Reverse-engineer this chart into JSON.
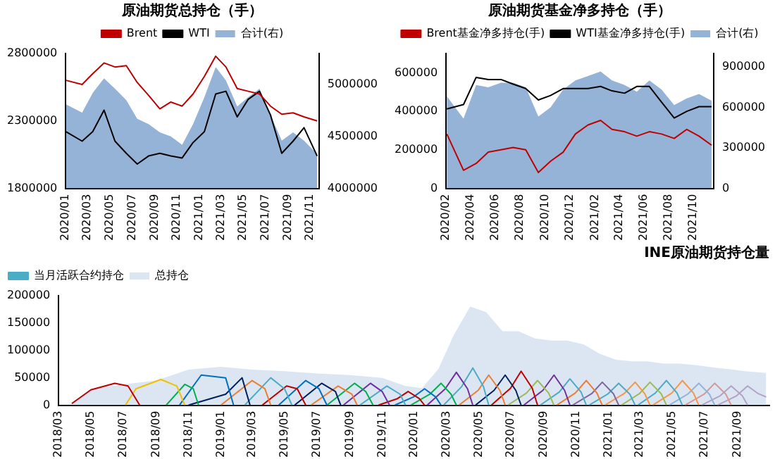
{
  "chart_data": [
    {
      "type": "line",
      "title": "原油期货总持仓（手）",
      "legend": "top",
      "marker": "none",
      "xlim": [
        "2020-01-01",
        "2021-11-25"
      ],
      "xticks": [
        {
          "value": "2020-01",
          "label": "2020/01"
        },
        {
          "value": "2020-03",
          "label": "2020/03"
        },
        {
          "value": "2020-05",
          "label": "2020/05"
        },
        {
          "value": "2020-07",
          "label": "2020/07"
        },
        {
          "value": "2020-09",
          "label": "2020/09"
        },
        {
          "value": "2020-11",
          "label": "2020/11"
        },
        {
          "value": "2021-01",
          "label": "2021/01"
        },
        {
          "value": "2021-03",
          "label": "2021/03"
        },
        {
          "value": "2021-05",
          "label": "2021/05"
        },
        {
          "value": "2021-07",
          "label": "2021/07"
        },
        {
          "value": "2021-09",
          "label": "2021/09"
        },
        {
          "value": "2021-11",
          "label": "2021/11"
        }
      ],
      "ylim": [
        1800000,
        2800000
      ],
      "yticks": [
        1800000,
        2300000,
        2800000
      ],
      "y2lim": [
        4000000,
        5300000
      ],
      "y2ticks": [
        4000000,
        4500000,
        5000000
      ],
      "x": [
        "2020-01-02",
        "2020-02-15",
        "2020-03-15",
        "2020-04-15",
        "2020-05-15",
        "2020-06-15",
        "2020-07-15",
        "2020-08-15",
        "2020-09-15",
        "2020-10-15",
        "2020-11-15",
        "2020-12-15",
        "2021-01-15",
        "2021-02-15",
        "2021-03-15",
        "2021-04-15",
        "2021-05-15",
        "2021-06-15",
        "2021-07-15",
        "2021-08-15",
        "2021-09-15",
        "2021-10-15",
        "2021-11-20"
      ],
      "series": [
        {
          "name": "合计(右)",
          "type": "area",
          "axis": "y2",
          "color": "#95b3d7",
          "values": [
            4810000,
            4730000,
            4920000,
            5060000,
            4960000,
            4850000,
            4670000,
            4620000,
            4540000,
            4500000,
            4420000,
            4620000,
            4880000,
            5170000,
            5040000,
            4790000,
            4880000,
            4960000,
            4710000,
            4460000,
            4540000,
            4460000,
            4330000
          ]
        },
        {
          "name": "Brent",
          "color": "#c00000",
          "values": [
            2601000,
            2570000,
            2650000,
            2730000,
            2700000,
            2710000,
            2585000,
            2490000,
            2390000,
            2440000,
            2410000,
            2500000,
            2630000,
            2780000,
            2700000,
            2540000,
            2520000,
            2500000,
            2410000,
            2350000,
            2360000,
            2330000,
            2300000
          ]
        },
        {
          "name": "WTI",
          "color": "#000000",
          "values": [
            2220000,
            2150000,
            2220000,
            2380000,
            2150000,
            2060000,
            1980000,
            2040000,
            2060000,
            2040000,
            2025000,
            2140000,
            2220000,
            2500000,
            2520000,
            2330000,
            2460000,
            2520000,
            2345000,
            2060000,
            2150000,
            2250000,
            2040000
          ]
        }
      ]
    },
    {
      "type": "line",
      "title": "原油期货基金净多持仓（手）",
      "legend": "top",
      "marker": "none",
      "xlim": [
        "2020-02-01",
        "2021-11-20"
      ],
      "xticks": [
        {
          "value": "2020-02",
          "label": "2020/02"
        },
        {
          "value": "2020-04",
          "label": "2020/04"
        },
        {
          "value": "2020-06",
          "label": "2020/06"
        },
        {
          "value": "2020-08",
          "label": "2020/08"
        },
        {
          "value": "2020-10",
          "label": "2020/10"
        },
        {
          "value": "2020-12",
          "label": "2020/12"
        },
        {
          "value": "2021-02",
          "label": "2021/02"
        },
        {
          "value": "2021-04",
          "label": "2021/04"
        },
        {
          "value": "2021-06",
          "label": "2021/06"
        },
        {
          "value": "2021-08",
          "label": "2021/08"
        },
        {
          "value": "2021-10",
          "label": "2021/10"
        }
      ],
      "ylim": [
        0,
        700000
      ],
      "yticks": [
        0,
        200000,
        400000,
        600000
      ],
      "y2lim": [
        0,
        1000000
      ],
      "y2ticks": [
        0,
        300000,
        600000,
        900000
      ],
      "x": [
        "2020-02-03",
        "2020-03-15",
        "2020-04-15",
        "2020-05-15",
        "2020-06-15",
        "2020-07-15",
        "2020-08-15",
        "2020-09-15",
        "2020-10-15",
        "2020-11-15",
        "2020-12-15",
        "2021-01-15",
        "2021-02-15",
        "2021-03-15",
        "2021-04-15",
        "2021-05-15",
        "2021-06-15",
        "2021-07-15",
        "2021-08-15",
        "2021-09-15",
        "2021-10-15",
        "2021-11-15"
      ],
      "series": [
        {
          "name": "合计(右)",
          "type": "area",
          "axis": "y2",
          "color": "#95b3d7",
          "values": [
            683000,
            517000,
            767000,
            750000,
            783000,
            783000,
            750000,
            533000,
            600000,
            733000,
            800000,
            833000,
            867000,
            800000,
            767000,
            717000,
            800000,
            733000,
            617000,
            667000,
            700000,
            650000
          ]
        },
        {
          "name": "Brent基金净多持仓(手)",
          "color": "#c00000",
          "values": [
            282000,
            94000,
            129000,
            188000,
            200000,
            212000,
            200000,
            82000,
            141000,
            188000,
            282000,
            329000,
            353000,
            306000,
            294000,
            271000,
            294000,
            282000,
            259000,
            306000,
            271000,
            224000
          ]
        },
        {
          "name": "WTI基金净多持仓(手)",
          "color": "#000000",
          "values": [
            412000,
            435000,
            576000,
            565000,
            565000,
            541000,
            518000,
            459000,
            482000,
            518000,
            518000,
            518000,
            529000,
            506000,
            494000,
            529000,
            529000,
            447000,
            365000,
            400000,
            424000,
            424000
          ]
        }
      ]
    },
    {
      "type": "line",
      "title": "INE原油期货持仓量",
      "legend": "top left",
      "marker": "none",
      "xlim": [
        "2018-03-01",
        "2021-10-31"
      ],
      "xticks": [
        {
          "value": "2018-03",
          "label": "2018/03"
        },
        {
          "value": "2018-05",
          "label": "2018/05"
        },
        {
          "value": "2018-07",
          "label": "2018/07"
        },
        {
          "value": "2018-09",
          "label": "2018/09"
        },
        {
          "value": "2018-11",
          "label": "2018/11"
        },
        {
          "value": "2019-01",
          "label": "2019/01"
        },
        {
          "value": "2019-03",
          "label": "2019/03"
        },
        {
          "value": "2019-05",
          "label": "2019/05"
        },
        {
          "value": "2019-07",
          "label": "2019/07"
        },
        {
          "value": "2019-09",
          "label": "2019/09"
        },
        {
          "value": "2019-11",
          "label": "2019/11"
        },
        {
          "value": "2020-01",
          "label": "2020/01"
        },
        {
          "value": "2020-03",
          "label": "2020/03"
        },
        {
          "value": "2020-05",
          "label": "2020/05"
        },
        {
          "value": "2020-07",
          "label": "2020/07"
        },
        {
          "value": "2020-09",
          "label": "2020/09"
        },
        {
          "value": "2020-11",
          "label": "2020/11"
        },
        {
          "value": "2021-01",
          "label": "2021/01"
        },
        {
          "value": "2021-03",
          "label": "2021/03"
        },
        {
          "value": "2021-05",
          "label": "2021/05"
        },
        {
          "value": "2021-07",
          "label": "2021/07"
        },
        {
          "value": "2021-09",
          "label": "2021/09"
        }
      ],
      "ylim": [
        0,
        200000
      ],
      "yticks": [
        0,
        50000,
        100000,
        150000,
        200000
      ],
      "series": [
        {
          "name": "总持仓",
          "type": "area",
          "color": "#dce6f2",
          "x": [
            "2018-03-26",
            "2018-05-01",
            "2018-07-01",
            "2018-09-01",
            "2018-11-01",
            "2019-01-01",
            "2019-03-01",
            "2019-05-01",
            "2019-07-01",
            "2019-09-01",
            "2019-11-01",
            "2019-12-15",
            "2020-01-15",
            "2020-02-15",
            "2020-03-15",
            "2020-04-15",
            "2020-05-15",
            "2020-06-15",
            "2020-07-15",
            "2020-08-15",
            "2020-09-15",
            "2020-10-15",
            "2020-11-15",
            "2020-12-15",
            "2021-01-15",
            "2021-02-15",
            "2021-03-15",
            "2021-04-15",
            "2021-05-15",
            "2021-06-15",
            "2021-07-15",
            "2021-08-15",
            "2021-09-15",
            "2021-10-25"
          ],
          "values": [
            5000,
            30000,
            38000,
            45000,
            65000,
            70000,
            65000,
            62000,
            58000,
            55000,
            50000,
            35000,
            31000,
            66000,
            128000,
            180000,
            170000,
            135000,
            135000,
            122000,
            118000,
            118000,
            111000,
            94000,
            83000,
            80000,
            80000,
            76000,
            76000,
            73000,
            69000,
            66000,
            62000,
            59000
          ]
        },
        {
          "color": "#c00000",
          "x": [
            "2018-03-26",
            "2018-05-01",
            "2018-06-15",
            "2018-07-10",
            "2018-08-01"
          ],
          "values": [
            3000,
            28000,
            40000,
            35000,
            0
          ]
        },
        {
          "color": "#f0c000",
          "x": [
            "2018-07-05",
            "2018-07-25",
            "2018-09-10",
            "2018-10-10",
            "2018-10-25"
          ],
          "values": [
            0,
            30000,
            47000,
            35000,
            0
          ]
        },
        {
          "color": "#00b050",
          "x": [
            "2018-09-20",
            "2018-10-25",
            "2018-11-10",
            "2018-11-20"
          ],
          "values": [
            0,
            38000,
            30000,
            0
          ]
        },
        {
          "color": "#0070c0",
          "x": [
            "2018-10-15",
            "2018-11-25",
            "2019-01-10",
            "2019-01-25"
          ],
          "values": [
            0,
            55000,
            50000,
            0
          ]
        },
        {
          "color": "#002060",
          "x": [
            "2018-11-01",
            "2019-01-10",
            "2019-02-10",
            "2019-02-25"
          ],
          "values": [
            0,
            20000,
            50000,
            0
          ]
        },
        {
          "color": "#ed7d31",
          "x": [
            "2019-01-01",
            "2019-03-01",
            "2019-03-25",
            "2019-04-05"
          ],
          "values": [
            0,
            45000,
            30000,
            0
          ]
        },
        {
          "name": "当月活跃合约持仓",
          "color": "#4bacc6",
          "x": [
            "2019-02-15",
            "2019-04-05",
            "2019-05-01",
            "2019-05-15"
          ],
          "values": [
            0,
            50000,
            30000,
            0
          ]
        },
        {
          "color": "#c00000",
          "x": [
            "2019-03-20",
            "2019-05-05",
            "2019-05-25",
            "2019-06-10"
          ],
          "values": [
            0,
            35000,
            30000,
            0
          ]
        },
        {
          "color": "#0070c0",
          "x": [
            "2019-04-20",
            "2019-06-10",
            "2019-07-05",
            "2019-07-20"
          ],
          "values": [
            0,
            45000,
            30000,
            0
          ]
        },
        {
          "color": "#002060",
          "x": [
            "2019-05-20",
            "2019-07-10",
            "2019-08-05",
            "2019-08-15"
          ],
          "values": [
            0,
            40000,
            25000,
            0
          ]
        },
        {
          "color": "#ed7d31",
          "x": [
            "2019-06-20",
            "2019-08-10",
            "2019-09-05",
            "2019-09-15"
          ],
          "values": [
            0,
            35000,
            20000,
            0
          ]
        },
        {
          "color": "#00b050",
          "x": [
            "2019-07-20",
            "2019-09-10",
            "2019-10-01",
            "2019-10-15"
          ],
          "values": [
            0,
            40000,
            25000,
            0
          ]
        },
        {
          "color": "#7030a0",
          "x": [
            "2019-08-20",
            "2019-10-10",
            "2019-11-01",
            "2019-11-15"
          ],
          "values": [
            0,
            40000,
            25000,
            0
          ]
        },
        {
          "color": "#4bacc6",
          "x": [
            "2019-09-20",
            "2019-11-10",
            "2019-12-05",
            "2019-12-15"
          ],
          "values": [
            0,
            35000,
            20000,
            0
          ]
        },
        {
          "color": "#c00000",
          "x": [
            "2019-10-25",
            "2019-11-30",
            "2019-12-20",
            "2020-01-10",
            "2020-01-20"
          ],
          "values": [
            0,
            12000,
            25000,
            12000,
            0
          ]
        },
        {
          "color": "#0070c0",
          "x": [
            "2019-11-25",
            "2019-12-30",
            "2020-01-20",
            "2020-02-10",
            "2020-02-20"
          ],
          "values": [
            0,
            15000,
            30000,
            15000,
            0
          ]
        },
        {
          "color": "#00b050",
          "x": [
            "2019-12-25",
            "2020-01-30",
            "2020-02-20",
            "2020-03-10",
            "2020-03-20"
          ],
          "values": [
            0,
            20000,
            40000,
            20000,
            0
          ]
        },
        {
          "color": "#7030a0",
          "x": [
            "2020-01-25",
            "2020-02-28",
            "2020-03-20",
            "2020-04-10",
            "2020-04-20"
          ],
          "values": [
            0,
            30000,
            60000,
            30000,
            0
          ]
        },
        {
          "color": "#4bacc6",
          "x": [
            "2020-02-25",
            "2020-03-30",
            "2020-04-20",
            "2020-05-10",
            "2020-05-20"
          ],
          "values": [
            0,
            34000,
            68000,
            34000,
            0
          ]
        },
        {
          "color": "#ed7d31",
          "x": [
            "2020-03-25",
            "2020-04-30",
            "2020-05-20",
            "2020-06-10",
            "2020-06-20"
          ],
          "values": [
            0,
            27000,
            55000,
            27000,
            0
          ]
        },
        {
          "color": "#002060",
          "x": [
            "2020-04-25",
            "2020-05-30",
            "2020-06-20",
            "2020-07-10",
            "2020-07-20"
          ],
          "values": [
            0,
            27000,
            55000,
            27000,
            0
          ]
        },
        {
          "color": "#c00000",
          "x": [
            "2020-05-25",
            "2020-06-30",
            "2020-07-20",
            "2020-08-10",
            "2020-08-20"
          ],
          "values": [
            0,
            31000,
            62000,
            31000,
            0
          ]
        },
        {
          "color": "#9bbb59",
          "x": [
            "2020-06-25",
            "2020-07-30",
            "2020-08-20",
            "2020-09-10",
            "2020-09-20"
          ],
          "values": [
            0,
            22000,
            45000,
            22000,
            0
          ]
        },
        {
          "color": "#7030a0",
          "x": [
            "2020-07-25",
            "2020-08-30",
            "2020-09-20",
            "2020-10-10",
            "2020-10-20"
          ],
          "values": [
            0,
            27000,
            55000,
            27000,
            0
          ]
        },
        {
          "color": "#4bacc6",
          "x": [
            "2020-08-25",
            "2020-09-30",
            "2020-10-20",
            "2020-11-10",
            "2020-11-20"
          ],
          "values": [
            0,
            24000,
            48000,
            24000,
            0
          ]
        },
        {
          "color": "#ed7d31",
          "x": [
            "2020-09-25",
            "2020-10-30",
            "2020-11-20",
            "2020-12-10",
            "2020-12-20"
          ],
          "values": [
            0,
            22000,
            45000,
            22000,
            0
          ]
        },
        {
          "color": "#8064a2",
          "x": [
            "2020-10-25",
            "2020-11-30",
            "2020-12-20",
            "2021-01-10",
            "2021-01-20"
          ],
          "values": [
            0,
            21000,
            42000,
            21000,
            0
          ]
        },
        {
          "color": "#4bacc6",
          "x": [
            "2020-11-25",
            "2020-12-30",
            "2021-01-20",
            "2021-02-10",
            "2021-02-20"
          ],
          "values": [
            0,
            20000,
            40000,
            20000,
            0
          ]
        },
        {
          "color": "#f79646",
          "x": [
            "2020-12-25",
            "2021-01-30",
            "2021-02-20",
            "2021-03-10",
            "2021-03-20"
          ],
          "values": [
            0,
            21000,
            42000,
            21000,
            0
          ]
        },
        {
          "color": "#9bbb59",
          "x": [
            "2021-01-25",
            "2021-02-28",
            "2021-03-20",
            "2021-04-10",
            "2021-04-20"
          ],
          "values": [
            0,
            21000,
            42000,
            21000,
            0
          ]
        },
        {
          "color": "#4bacc6",
          "x": [
            "2021-02-25",
            "2021-03-30",
            "2021-04-20",
            "2021-05-10",
            "2021-05-20"
          ],
          "values": [
            0,
            22000,
            45000,
            22000,
            0
          ]
        },
        {
          "color": "#f79646",
          "x": [
            "2021-03-25",
            "2021-04-30",
            "2021-05-20",
            "2021-06-10",
            "2021-06-20"
          ],
          "values": [
            0,
            22000,
            45000,
            22000,
            0
          ]
        },
        {
          "color": "#95b3d7",
          "x": [
            "2021-04-25",
            "2021-05-30",
            "2021-06-20",
            "2021-07-10",
            "2021-07-20"
          ],
          "values": [
            0,
            20000,
            40000,
            20000,
            0
          ]
        },
        {
          "color": "#d99694",
          "x": [
            "2021-05-25",
            "2021-06-30",
            "2021-07-20",
            "2021-08-10",
            "2021-08-20"
          ],
          "values": [
            0,
            20000,
            40000,
            20000,
            0
          ]
        },
        {
          "color": "#b3a2c7",
          "x": [
            "2021-06-25",
            "2021-07-30",
            "2021-08-20",
            "2021-09-10",
            "2021-09-20"
          ],
          "values": [
            0,
            17000,
            35000,
            17000,
            0
          ]
        },
        {
          "color": "#b3a2c7",
          "x": [
            "2021-07-25",
            "2021-08-30",
            "2021-09-20",
            "2021-10-10",
            "2021-10-25"
          ],
          "values": [
            0,
            17000,
            35000,
            21000,
            15000
          ]
        }
      ]
    }
  ]
}
